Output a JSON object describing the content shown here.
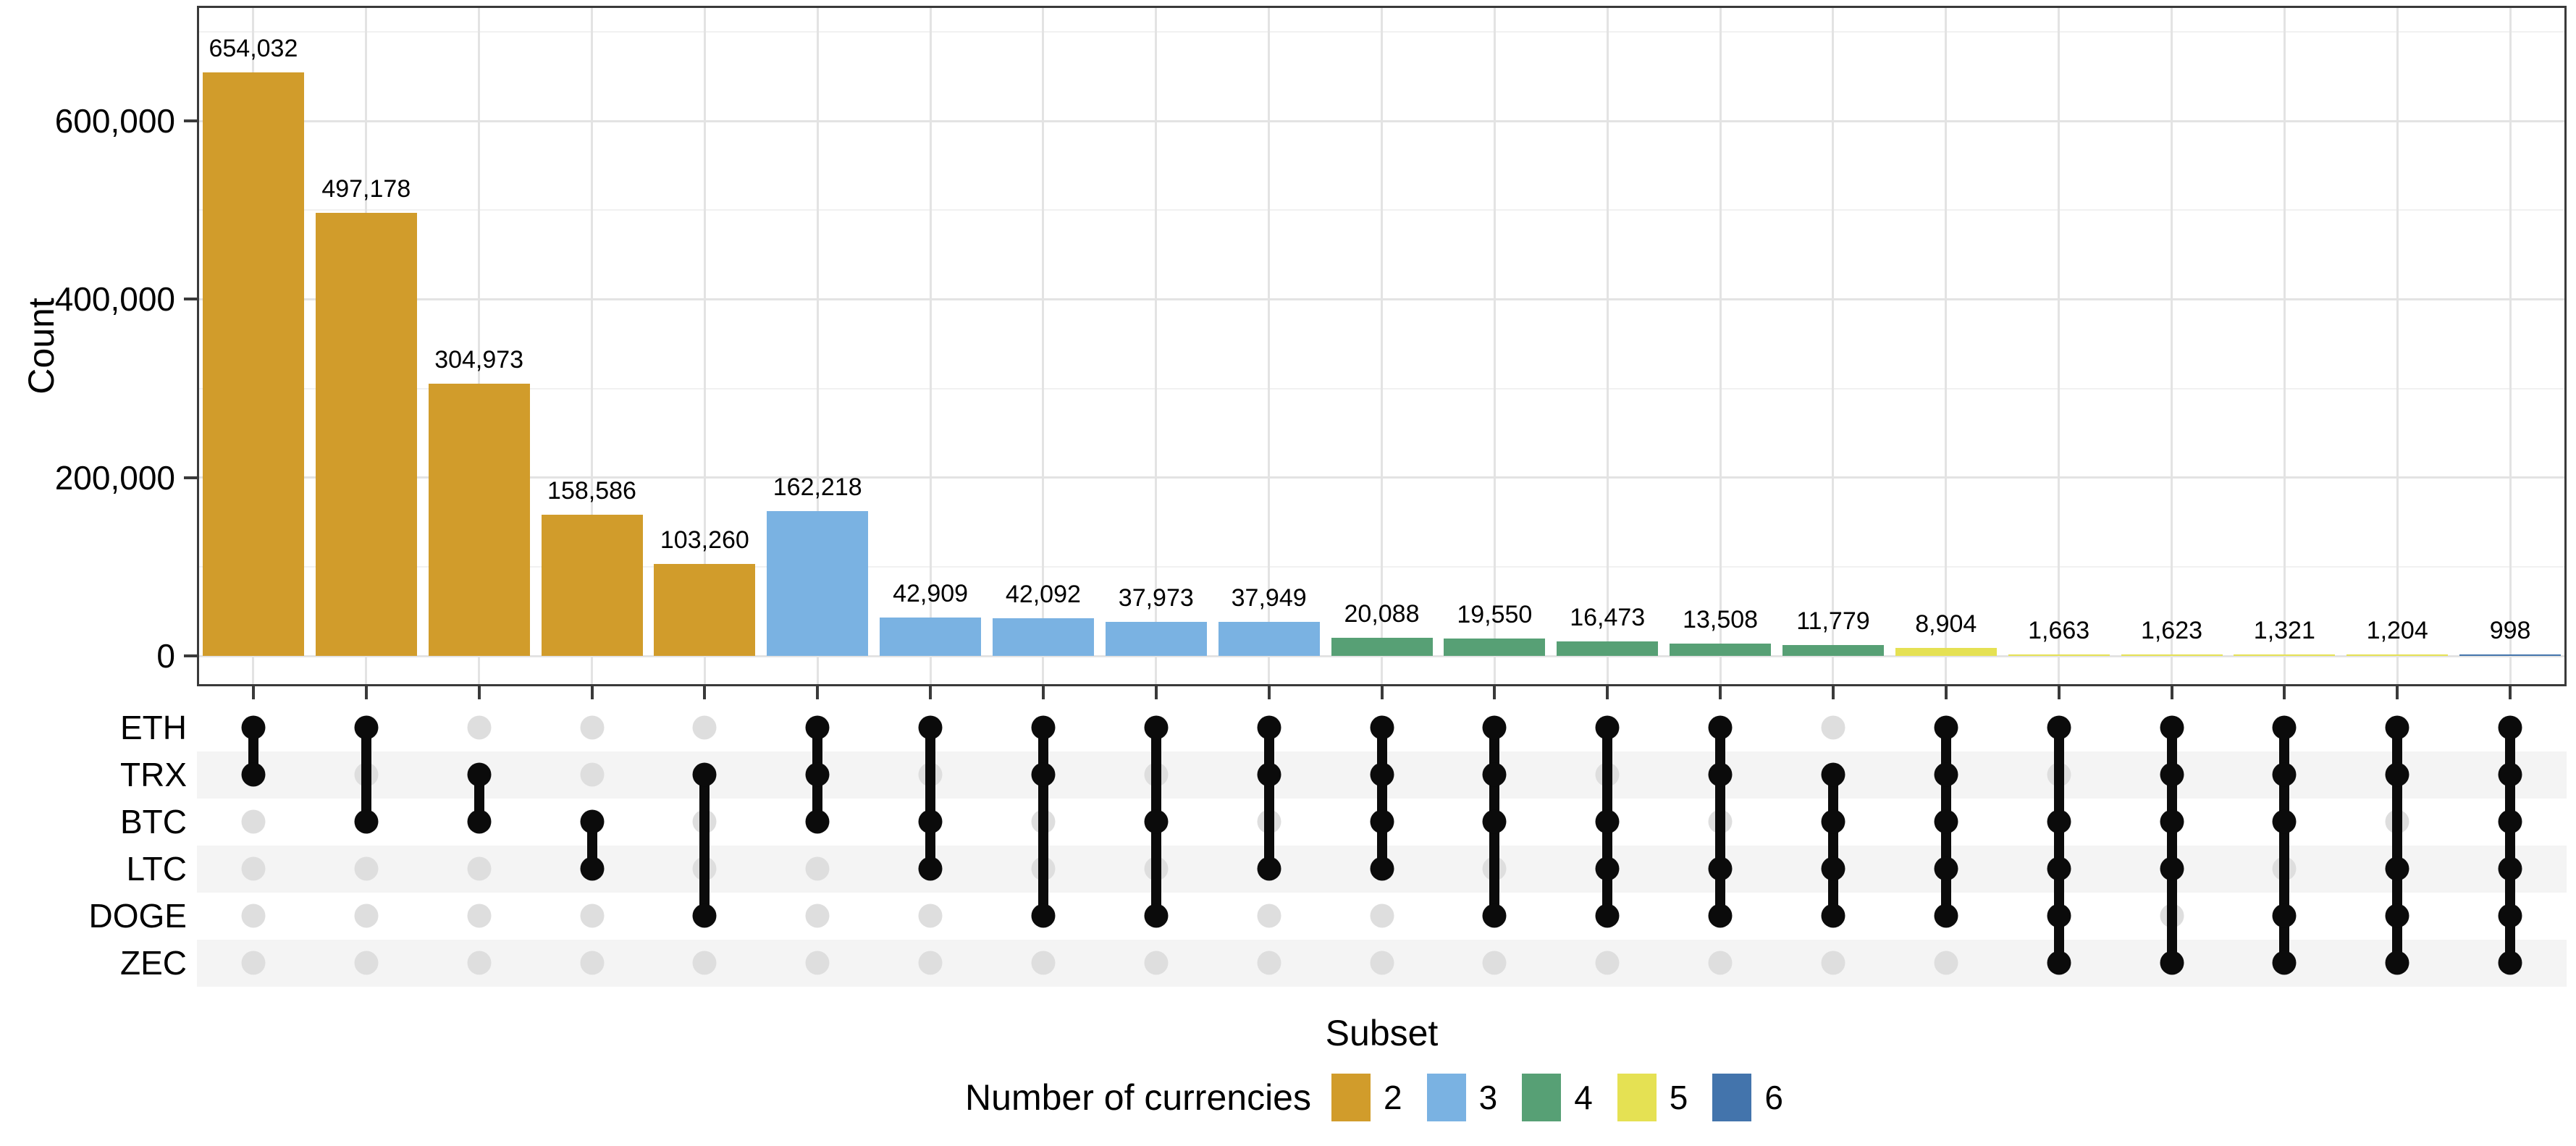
{
  "chart_data": {
    "type": "upset",
    "title": "",
    "xlabel": "Subset",
    "ylabel": "Count",
    "sets": [
      "ETH",
      "TRX",
      "BTC",
      "LTC",
      "DOGE",
      "ZEC"
    ],
    "y_axis": {
      "tick_values": [
        0,
        200000,
        400000,
        600000
      ],
      "tick_labels": [
        "0",
        "200,000",
        "400,000",
        "600,000"
      ],
      "minor_tick_values": [
        100000,
        300000,
        500000,
        700000
      ],
      "ylim": [
        0,
        729000
      ],
      "grid": "on"
    },
    "legend": {
      "title": "Number of currencies",
      "position": "bottom",
      "entries": [
        {
          "label": "2",
          "color": "#D19C2B"
        },
        {
          "label": "3",
          "color": "#7AB2E2"
        },
        {
          "label": "4",
          "color": "#57A075"
        },
        {
          "label": "5",
          "color": "#E5E153"
        },
        {
          "label": "6",
          "color": "#4374AC"
        }
      ]
    },
    "intersections": [
      {
        "members": [
          "ETH",
          "TRX"
        ],
        "value": 654032,
        "label": "654,032",
        "num_currencies": 2
      },
      {
        "members": [
          "ETH",
          "BTC"
        ],
        "value": 497178,
        "label": "497,178",
        "num_currencies": 2
      },
      {
        "members": [
          "TRX",
          "BTC"
        ],
        "value": 304973,
        "label": "304,973",
        "num_currencies": 2
      },
      {
        "members": [
          "BTC",
          "LTC"
        ],
        "value": 158586,
        "label": "158,586",
        "num_currencies": 2
      },
      {
        "members": [
          "TRX",
          "DOGE"
        ],
        "value": 103260,
        "label": "103,260",
        "num_currencies": 2
      },
      {
        "members": [
          "ETH",
          "TRX",
          "BTC"
        ],
        "value": 162218,
        "label": "162,218",
        "num_currencies": 3
      },
      {
        "members": [
          "ETH",
          "BTC",
          "LTC"
        ],
        "value": 42909,
        "label": "42,909",
        "num_currencies": 3
      },
      {
        "members": [
          "ETH",
          "TRX",
          "DOGE"
        ],
        "value": 42092,
        "label": "42,092",
        "num_currencies": 3
      },
      {
        "members": [
          "ETH",
          "BTC",
          "DOGE"
        ],
        "value": 37973,
        "label": "37,973",
        "num_currencies": 3
      },
      {
        "members": [
          "ETH",
          "TRX",
          "LTC"
        ],
        "value": 37949,
        "label": "37,949",
        "num_currencies": 3
      },
      {
        "members": [
          "ETH",
          "TRX",
          "BTC",
          "LTC"
        ],
        "value": 20088,
        "label": "20,088",
        "num_currencies": 4
      },
      {
        "members": [
          "ETH",
          "TRX",
          "BTC",
          "DOGE"
        ],
        "value": 19550,
        "label": "19,550",
        "num_currencies": 4
      },
      {
        "members": [
          "ETH",
          "BTC",
          "LTC",
          "DOGE"
        ],
        "value": 16473,
        "label": "16,473",
        "num_currencies": 4
      },
      {
        "members": [
          "ETH",
          "TRX",
          "LTC",
          "DOGE"
        ],
        "value": 13508,
        "label": "13,508",
        "num_currencies": 4
      },
      {
        "members": [
          "TRX",
          "BTC",
          "LTC",
          "DOGE"
        ],
        "value": 11779,
        "label": "11,779",
        "num_currencies": 4
      },
      {
        "members": [
          "ETH",
          "TRX",
          "BTC",
          "LTC",
          "DOGE"
        ],
        "value": 8904,
        "label": "8,904",
        "num_currencies": 5
      },
      {
        "members": [
          "ETH",
          "BTC",
          "LTC",
          "DOGE",
          "ZEC"
        ],
        "value": 1663,
        "label": "1,663",
        "num_currencies": 5
      },
      {
        "members": [
          "ETH",
          "TRX",
          "BTC",
          "LTC",
          "ZEC"
        ],
        "value": 1623,
        "label": "1,623",
        "num_currencies": 5
      },
      {
        "members": [
          "ETH",
          "TRX",
          "BTC",
          "DOGE",
          "ZEC"
        ],
        "value": 1321,
        "label": "1,321",
        "num_currencies": 5
      },
      {
        "members": [
          "ETH",
          "TRX",
          "LTC",
          "DOGE",
          "ZEC"
        ],
        "value": 1204,
        "label": "1,204",
        "num_currencies": 5
      },
      {
        "members": [
          "ETH",
          "TRX",
          "BTC",
          "LTC",
          "DOGE",
          "ZEC"
        ],
        "value": 998,
        "label": "998",
        "num_currencies": 6
      }
    ]
  },
  "colors": {
    "background": "#FFFFFF",
    "bar_2_currencies": "#D19C2B",
    "bar_3_currencies": "#7AB2E2",
    "bar_4_currencies": "#57A075",
    "bar_5_currencies": "#E5E153",
    "bar_6_currencies": "#4374AC",
    "active_dot": "#0B0B0B",
    "inactive_dot": "#DEDEDE",
    "row_band": "#F4F4F4",
    "grid_major": "#E3E3E3",
    "grid_minor": "#F1F1F1",
    "panel_border": "#3A3A3A",
    "tick_mark": "#3A3A3A",
    "text": "#000000"
  }
}
